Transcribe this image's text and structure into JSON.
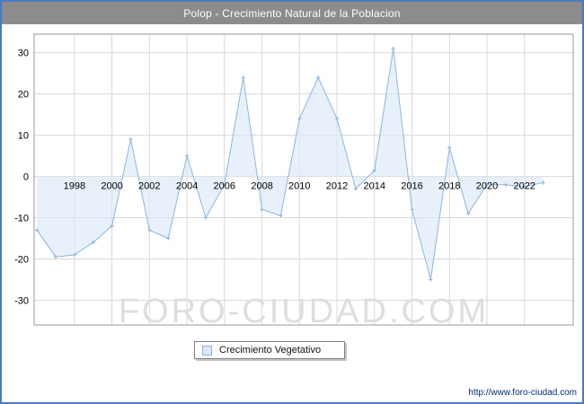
{
  "header": {
    "title": "Polop - Crecimiento Natural de la Poblacion"
  },
  "legend": {
    "label": "Crecimiento Vegetativo"
  },
  "footer": {
    "url": "http://www.foro-ciudad.com"
  },
  "chart_data": {
    "type": "area",
    "title": "Polop - Crecimiento Natural de la Poblacion",
    "xlabel": "",
    "ylabel": "",
    "x": [
      1996,
      1997,
      1998,
      1999,
      2000,
      2001,
      2002,
      2003,
      2004,
      2005,
      2006,
      2007,
      2008,
      2009,
      2010,
      2011,
      2012,
      2013,
      2014,
      2015,
      2016,
      2017,
      2018,
      2019,
      2020,
      2021,
      2022,
      2023
    ],
    "series": [
      {
        "name": "Crecimiento Vegetativo",
        "values": [
          -13,
          -19.5,
          -19,
          -16,
          -12,
          9,
          -13,
          -15,
          5,
          -10,
          -2,
          24,
          -8,
          -9.5,
          14,
          24,
          14,
          -3,
          1.5,
          31,
          -8,
          -25,
          7,
          -9,
          -2,
          -2,
          -2.5,
          -1.5
        ]
      }
    ],
    "baseline": 0,
    "grid": true,
    "legend_position": "bottom",
    "xticks": [
      1998,
      2000,
      2002,
      2004,
      2006,
      2008,
      2010,
      2012,
      2014,
      2016,
      2018,
      2020,
      2022
    ],
    "yticks": [
      -30,
      -20,
      -10,
      0,
      10,
      20,
      30
    ],
    "xlim": [
      1995.85,
      2024.6
    ],
    "ylim": [
      -36,
      34.5
    ],
    "line_color": "#8db4e2",
    "fill_color": "#dbe9f8",
    "grid_color": "#d8d8d8",
    "watermark": "FORO-CIUDAD.COM"
  }
}
